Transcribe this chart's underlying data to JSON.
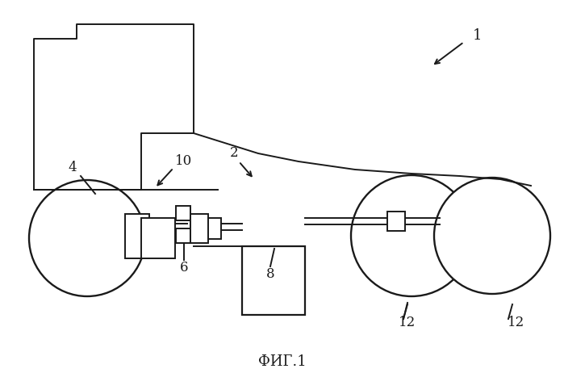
{
  "title": "ФИГ.1",
  "label_1": "1",
  "label_2": "2",
  "label_4": "4",
  "label_6": "6",
  "label_8": "8",
  "label_10": "10",
  "label_12a": "12",
  "label_12b": "12",
  "bg_color": "#ffffff",
  "line_color": "#1a1a1a",
  "figsize": [
    6.99,
    4.62
  ],
  "dpi": 100
}
